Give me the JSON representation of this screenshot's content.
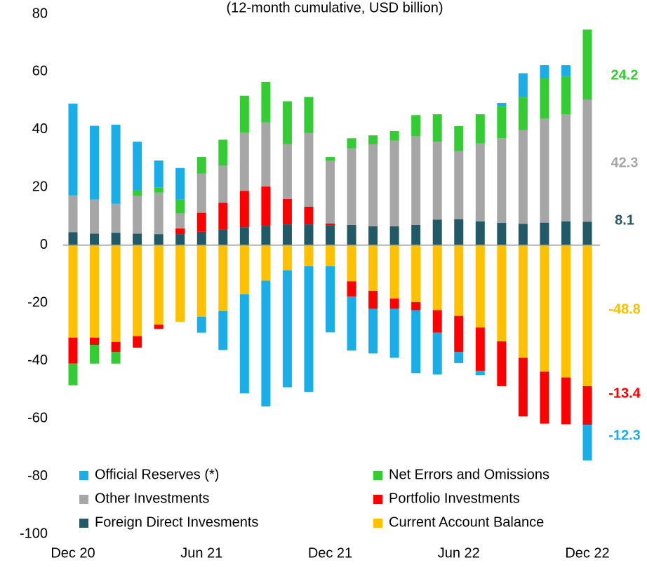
{
  "chart_data": {
    "type": "stacked_bar",
    "subtitle": "(12-month cumulative, USD billion)",
    "categories": [
      "Dec 20",
      null,
      null,
      null,
      null,
      null,
      "Jun 21",
      null,
      null,
      null,
      null,
      null,
      "Dec 21",
      null,
      null,
      null,
      null,
      null,
      "Jun 22",
      null,
      null,
      null,
      null,
      null,
      "Dec 22"
    ],
    "series": [
      {
        "name": "Official Reserves (*)",
        "color": "#1aaee8",
        "values": [
          31.8,
          25.5,
          27.4,
          16.8,
          9.3,
          10.9,
          -5.5,
          -13.5,
          -34.3,
          -43.5,
          -40.5,
          -43.5,
          -22.9,
          -18.7,
          -15.5,
          -17,
          -21.8,
          -14.5,
          -3.8,
          -1.5,
          1,
          8.2,
          4.5,
          3.8,
          -12.3
        ]
      },
      {
        "name": "Net Errors and Omissions",
        "color": "#33cc33",
        "values": [
          -7.5,
          -6.5,
          -4,
          2,
          1.8,
          4.8,
          5.7,
          9,
          12.7,
          14,
          14.8,
          12.5,
          1.3,
          3.5,
          3,
          3.3,
          7.3,
          9.5,
          8.7,
          10.1,
          11.2,
          11.5,
          14,
          13.2,
          24.2
        ]
      },
      {
        "name": "Other Investments",
        "color": "#a6a6a6",
        "values": [
          12.7,
          11.8,
          10,
          13,
          14.4,
          5.2,
          13.6,
          12.8,
          20.2,
          22.2,
          19,
          25.5,
          21.7,
          26.5,
          28.5,
          29.7,
          30.7,
          27,
          23.5,
          27,
          29.3,
          32.4,
          36,
          37.1,
          42.3
        ]
      },
      {
        "name": "Portfolio Investments",
        "color": "#ff0000",
        "values": [
          -9,
          -2.5,
          -3.5,
          -4,
          -1.5,
          2,
          6.6,
          9.2,
          12.6,
          13.6,
          8.8,
          6.1,
          0.7,
          -5.3,
          -6.2,
          -3.5,
          -2.8,
          -7.8,
          -12.5,
          -15,
          -15.5,
          -20.3,
          -18,
          -16.2,
          -13.4
        ]
      },
      {
        "name": "Foreign Direct Invesments",
        "color": "#215967",
        "values": [
          4.5,
          4,
          4.3,
          4,
          3.8,
          3.8,
          4.6,
          5.5,
          6.2,
          6.7,
          7.2,
          7.2,
          6.8,
          7,
          6.5,
          6.5,
          7,
          8.8,
          9,
          8.2,
          7.7,
          7.4,
          7.8,
          8.2,
          8.1
        ]
      },
      {
        "name": "Current Account Balance",
        "color": "#ffc000",
        "values": [
          -32,
          -32,
          -33.5,
          -31.5,
          -27.5,
          -26.5,
          -24.8,
          -22.8,
          -17,
          -12.3,
          -8.7,
          -7.3,
          -7.3,
          -12.5,
          -15.8,
          -18.5,
          -19.7,
          -22.5,
          -24.5,
          -28.5,
          -33.3,
          -39,
          -43.8,
          -45.8,
          -48.8
        ]
      }
    ],
    "ylim": [
      -100,
      80
    ],
    "yticks": [
      -100,
      -80,
      -60,
      -40,
      -20,
      0,
      20,
      40,
      60,
      80
    ]
  }
}
